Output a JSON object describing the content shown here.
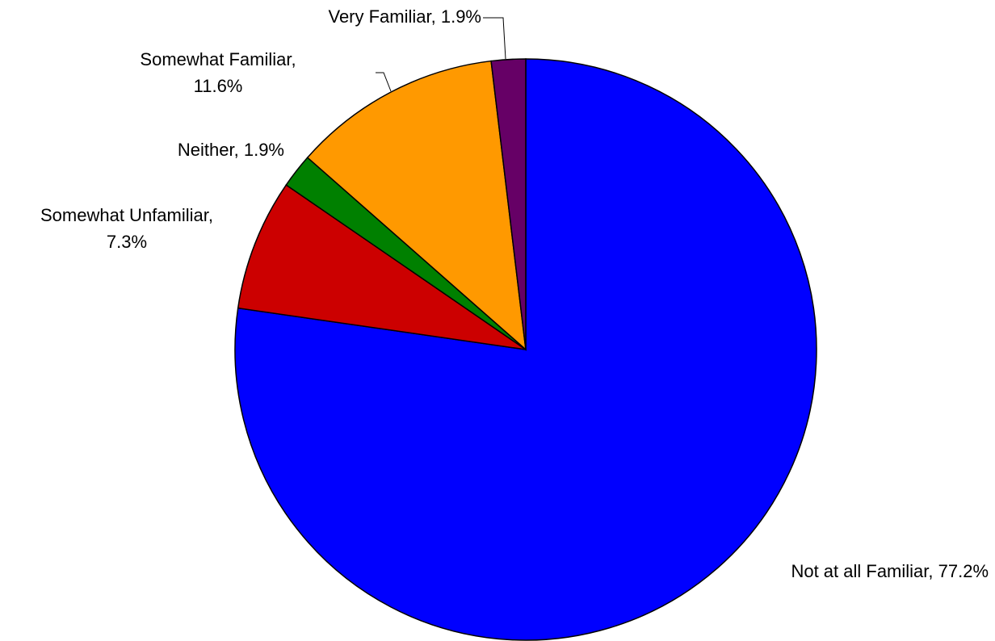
{
  "chart_data": {
    "type": "pie",
    "values": [
      77.2,
      7.3,
      1.9,
      11.6,
      1.9
    ],
    "value_labels": [
      [
        "Not at all Familiar, 77.2%"
      ],
      [
        "Somewhat Unfamiliar,",
        "7.3%"
      ],
      [
        "Neither, 1.9%"
      ],
      [
        "Somewhat Familiar,",
        "11.6%"
      ],
      [
        "Very Familiar, 1.9%"
      ]
    ],
    "colors": [
      "#0000ff",
      "#cc0000",
      "#008000",
      "#ff9900",
      "#660066"
    ]
  }
}
